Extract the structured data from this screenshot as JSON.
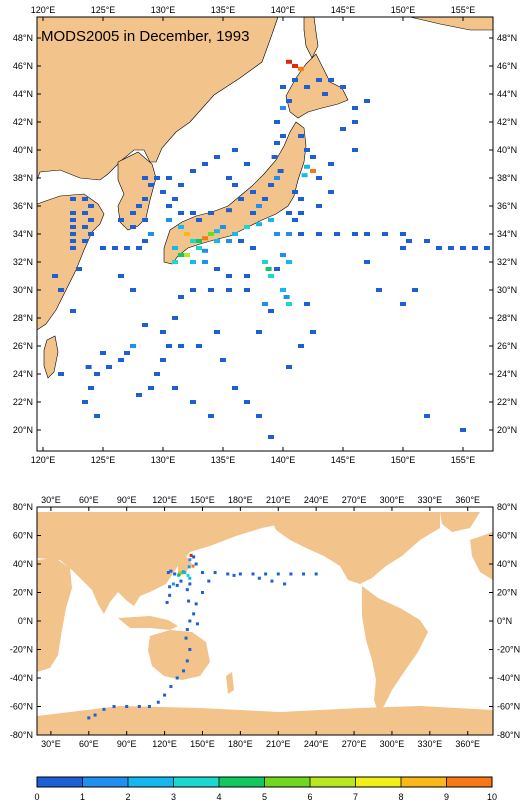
{
  "title": "MODS2005 in December, 1993",
  "colors": {
    "land": "#f2c38a",
    "ocean": "#ffffff",
    "frame": "#000000"
  },
  "regional_map": {
    "lon_range": [
      119.5,
      157.5
    ],
    "lat_range": [
      18.5,
      49.5
    ],
    "lon_ticks": [
      "120°E",
      "125°E",
      "130°E",
      "135°E",
      "140°E",
      "145°E",
      "150°E",
      "155°E"
    ],
    "lat_ticks": [
      "20°N",
      "22°N",
      "24°N",
      "26°N",
      "28°N",
      "30°N",
      "32°N",
      "34°N",
      "36°N",
      "38°N",
      "40°N",
      "42°N",
      "44°N",
      "46°N",
      "48°N"
    ]
  },
  "global_map": {
    "lon_range": [
      19,
      380
    ],
    "lat_range": [
      -80,
      80
    ],
    "lon_ticks": [
      "30°E",
      "60°E",
      "90°E",
      "120°E",
      "150°E",
      "180°E",
      "210°E",
      "240°E",
      "270°E",
      "300°E",
      "330°E",
      "360°E"
    ],
    "lat_ticks": [
      "80°N",
      "60°N",
      "40°N",
      "20°N",
      "0°N",
      "-20°N",
      "-40°N",
      "-60°N",
      "-80°N"
    ]
  },
  "colorbar": {
    "labels": [
      "0",
      "1",
      "2",
      "3",
      "4",
      "5",
      "6",
      "7",
      "8",
      "9",
      "10"
    ],
    "colors": [
      "#1f5fd6",
      "#1f8ff0",
      "#14b8f0",
      "#18d8d0",
      "#10c860",
      "#70d820",
      "#b8e820",
      "#f0f018",
      "#f8b818",
      "#f87818",
      "#e02810"
    ]
  },
  "observations_regional": [
    [
      122.5,
      36.5,
      0
    ],
    [
      123.5,
      36.5,
      0
    ],
    [
      124,
      36,
      0
    ],
    [
      122.5,
      35.5,
      0
    ],
    [
      123.5,
      35.5,
      0
    ],
    [
      122.5,
      35,
      0
    ],
    [
      124,
      35,
      0
    ],
    [
      122.5,
      34.5,
      0
    ],
    [
      123.5,
      34.5,
      0
    ],
    [
      122.5,
      34,
      0
    ],
    [
      124,
      34,
      0
    ],
    [
      122.5,
      33.5,
      0
    ],
    [
      123.5,
      33.5,
      0
    ],
    [
      122.5,
      33,
      0
    ],
    [
      125,
      33,
      0
    ],
    [
      126,
      33,
      0
    ],
    [
      127,
      33,
      0
    ],
    [
      128,
      33,
      0
    ],
    [
      128.5,
      33.5,
      0
    ],
    [
      129,
      34,
      1
    ],
    [
      127.5,
      34.5,
      0
    ],
    [
      126.5,
      35,
      0
    ],
    [
      128,
      36,
      0
    ],
    [
      128.5,
      36.5,
      0
    ],
    [
      129,
      37.5,
      0
    ],
    [
      128.5,
      38,
      0
    ],
    [
      129.5,
      38,
      0
    ],
    [
      130,
      37,
      0
    ],
    [
      131,
      36.5,
      0
    ],
    [
      130.5,
      38,
      0
    ],
    [
      131.5,
      37.5,
      0
    ],
    [
      132.5,
      38.5,
      0
    ],
    [
      133.5,
      39,
      0
    ],
    [
      134.5,
      39.5,
      0
    ],
    [
      136,
      40,
      0
    ],
    [
      137,
      39,
      0
    ],
    [
      130.5,
      35,
      1
    ],
    [
      131.5,
      34.5,
      2
    ],
    [
      132,
      34,
      8
    ],
    [
      132.5,
      33.5,
      3
    ],
    [
      133,
      33.5,
      4
    ],
    [
      133.5,
      33.7,
      9
    ],
    [
      134,
      34,
      5
    ],
    [
      134.5,
      34.2,
      2
    ],
    [
      135,
      34.5,
      1
    ],
    [
      131,
      33,
      2
    ],
    [
      131.5,
      32.5,
      4
    ],
    [
      131,
      32,
      3
    ],
    [
      132,
      32.5,
      6
    ],
    [
      132.5,
      32,
      2
    ],
    [
      133,
      33,
      3
    ],
    [
      133.5,
      32.8,
      1
    ],
    [
      134.5,
      33.5,
      2
    ],
    [
      135.5,
      33.5,
      1
    ],
    [
      136,
      34,
      2
    ],
    [
      137,
      34.5,
      3
    ],
    [
      138,
      34.7,
      2
    ],
    [
      139,
      35,
      2
    ],
    [
      136.5,
      33.5,
      0
    ],
    [
      137.5,
      33,
      0
    ],
    [
      139.5,
      34,
      1
    ],
    [
      140.5,
      34,
      1
    ],
    [
      141,
      35,
      0
    ],
    [
      137.5,
      35.5,
      0
    ],
    [
      138,
      36,
      1
    ],
    [
      138.5,
      36.5,
      0
    ],
    [
      139,
      37.5,
      0
    ],
    [
      139.5,
      38,
      1
    ],
    [
      139.8,
      38.5,
      0
    ],
    [
      139.3,
      39.5,
      0
    ],
    [
      139.5,
      40.5,
      0
    ],
    [
      140,
      41,
      0
    ],
    [
      139.5,
      42,
      0
    ],
    [
      140,
      43,
      1
    ],
    [
      140.5,
      43.5,
      0
    ],
    [
      140,
      44.5,
      0
    ],
    [
      141,
      45,
      0
    ],
    [
      141,
      46,
      10
    ],
    [
      141.5,
      45.8,
      9
    ],
    [
      140.5,
      46.3,
      10
    ],
    [
      142,
      44.5,
      0
    ],
    [
      143,
      45,
      0
    ],
    [
      144,
      45,
      0
    ],
    [
      145,
      44.5,
      0
    ],
    [
      143.5,
      44,
      0
    ],
    [
      141.5,
      41,
      0
    ],
    [
      142,
      40,
      0
    ],
    [
      142.5,
      39.5,
      0
    ],
    [
      142,
      38.8,
      2
    ],
    [
      142.5,
      38.5,
      9
    ],
    [
      141.8,
      38.2,
      2
    ],
    [
      141,
      37,
      0
    ],
    [
      141.5,
      36.5,
      0
    ],
    [
      141.5,
      35.5,
      0
    ],
    [
      140.5,
      35.5,
      0
    ],
    [
      141.5,
      34,
      0
    ],
    [
      143,
      34,
      0
    ],
    [
      144.5,
      34,
      0
    ],
    [
      146,
      34,
      0
    ],
    [
      147,
      34,
      0
    ],
    [
      148.5,
      34,
      0
    ],
    [
      150,
      34,
      0
    ],
    [
      150.5,
      33.5,
      0
    ],
    [
      152,
      33.5,
      0
    ],
    [
      153,
      33,
      0
    ],
    [
      154,
      33,
      0
    ],
    [
      155,
      33,
      0
    ],
    [
      156,
      33,
      0
    ],
    [
      157,
      33,
      0
    ],
    [
      150,
      33,
      0
    ],
    [
      143,
      36,
      0
    ],
    [
      144,
      37,
      0
    ],
    [
      143,
      38,
      0
    ],
    [
      144,
      39,
      0
    ],
    [
      146,
      40,
      0
    ],
    [
      146,
      43,
      0
    ],
    [
      145,
      41.5,
      0
    ],
    [
      133.5,
      32,
      1
    ],
    [
      134.5,
      31.5,
      0
    ],
    [
      135.5,
      31,
      0
    ],
    [
      137,
      31,
      0
    ],
    [
      138.5,
      32,
      3
    ],
    [
      138.8,
      31.5,
      4
    ],
    [
      139,
      31,
      3
    ],
    [
      139.5,
      31.5,
      0
    ],
    [
      140,
      32.5,
      1
    ],
    [
      140.5,
      32,
      2
    ],
    [
      140,
      30,
      2
    ],
    [
      140.3,
      29.5,
      1
    ],
    [
      140.5,
      29,
      3
    ],
    [
      138.5,
      29,
      1
    ],
    [
      139,
      28.5,
      0
    ],
    [
      137,
      30,
      0
    ],
    [
      135.5,
      30,
      0
    ],
    [
      134,
      30,
      0
    ],
    [
      132.5,
      30,
      0
    ],
    [
      131.5,
      29.5,
      0
    ],
    [
      131,
      28,
      0
    ],
    [
      130,
      27,
      0
    ],
    [
      130.5,
      26,
      0
    ],
    [
      130,
      25,
      0
    ],
    [
      129.5,
      24,
      0
    ],
    [
      131,
      23,
      0
    ],
    [
      129,
      23,
      0
    ],
    [
      128,
      22.5,
      0
    ],
    [
      127.5,
      26,
      1
    ],
    [
      127,
      25.5,
      0
    ],
    [
      126.5,
      25,
      0
    ],
    [
      125.5,
      24.5,
      0
    ],
    [
      124.5,
      24,
      0
    ],
    [
      125,
      25.5,
      0
    ],
    [
      123.8,
      24.5,
      0
    ],
    [
      124,
      23,
      0
    ],
    [
      123.5,
      22,
      0
    ],
    [
      124.5,
      21,
      0
    ],
    [
      133,
      26,
      0
    ],
    [
      134.5,
      27,
      0
    ],
    [
      135,
      25,
      0
    ],
    [
      136,
      23,
      0
    ],
    [
      137,
      22,
      0
    ],
    [
      138,
      21,
      0
    ],
    [
      139,
      19.5,
      0
    ],
    [
      142,
      29,
      0
    ],
    [
      142.5,
      27,
      0
    ],
    [
      141.5,
      26,
      0
    ],
    [
      140.5,
      24.5,
      0
    ],
    [
      147,
      32,
      0
    ],
    [
      148,
      30,
      0
    ],
    [
      150,
      29,
      0
    ],
    [
      151,
      30,
      0
    ],
    [
      155,
      20,
      0
    ],
    [
      152,
      21,
      0
    ],
    [
      138,
      27,
      0
    ],
    [
      134,
      35.5,
      0
    ],
    [
      135.5,
      35.7,
      0
    ],
    [
      136.5,
      36.5,
      0
    ],
    [
      137.5,
      37,
      0
    ],
    [
      136,
      37.5,
      0
    ],
    [
      135.5,
      38,
      0
    ],
    [
      133,
      35,
      0
    ],
    [
      132.5,
      35.5,
      0
    ],
    [
      131.5,
      35.5,
      0
    ],
    [
      130.5,
      36,
      0
    ],
    [
      128.5,
      35,
      0
    ],
    [
      127.5,
      35.5,
      0
    ],
    [
      121.5,
      24,
      0
    ],
    [
      121,
      31,
      0
    ],
    [
      123,
      31.5,
      0
    ],
    [
      121.5,
      30,
      0
    ],
    [
      122.5,
      28.5,
      0
    ],
    [
      126.5,
      31,
      0
    ],
    [
      127.5,
      30,
      0
    ],
    [
      128.5,
      27.5,
      0
    ],
    [
      131.5,
      26,
      0
    ],
    [
      132.5,
      22,
      0
    ],
    [
      134,
      21,
      0
    ],
    [
      146,
      42,
      0
    ],
    [
      147,
      43.5,
      0
    ]
  ],
  "observations_global": [
    [
      141,
      46,
      10
    ],
    [
      142.5,
      38.5,
      9
    ],
    [
      133.5,
      33.7,
      9
    ],
    [
      132,
      34,
      8
    ],
    [
      131,
      32,
      3
    ],
    [
      134,
      34,
      5
    ],
    [
      138.5,
      32,
      3
    ],
    [
      140,
      30,
      2
    ],
    [
      131.5,
      32.5,
      4
    ],
    [
      135,
      34.5,
      1
    ],
    [
      139.5,
      38,
      1
    ],
    [
      136,
      34,
      2
    ],
    [
      128,
      33,
      0
    ],
    [
      125,
      35,
      0
    ],
    [
      123,
      34,
      0
    ],
    [
      140,
      43,
      1
    ],
    [
      143,
      45,
      0
    ],
    [
      145,
      40,
      0
    ],
    [
      130,
      25,
      0
    ],
    [
      127,
      26,
      1
    ],
    [
      124,
      24,
      0
    ],
    [
      133,
      28,
      0
    ],
    [
      150,
      34,
      0
    ],
    [
      160,
      34,
      0
    ],
    [
      170,
      33,
      0
    ],
    [
      180,
      33,
      0
    ],
    [
      190,
      33,
      0
    ],
    [
      200,
      33,
      0
    ],
    [
      210,
      33,
      0
    ],
    [
      220,
      33,
      0
    ],
    [
      230,
      33,
      0
    ],
    [
      240,
      33,
      0
    ],
    [
      155,
      28,
      0
    ],
    [
      175,
      32,
      0
    ],
    [
      195,
      30,
      0
    ],
    [
      205,
      28,
      0
    ],
    [
      215,
      26,
      0
    ],
    [
      140,
      26,
      0
    ],
    [
      138,
      22,
      0
    ],
    [
      150,
      20,
      0
    ],
    [
      145,
      12,
      0
    ],
    [
      143,
      5,
      0
    ],
    [
      140,
      0,
      0
    ],
    [
      138,
      -6,
      0
    ],
    [
      137,
      -12,
      0
    ],
    [
      140,
      -20,
      0
    ],
    [
      138,
      -28,
      0
    ],
    [
      135,
      -35,
      0
    ],
    [
      130,
      -40,
      0
    ],
    [
      125,
      -46,
      0
    ],
    [
      120,
      -52,
      0
    ],
    [
      115,
      -57,
      0
    ],
    [
      108,
      -60,
      0
    ],
    [
      100,
      -60,
      0
    ],
    [
      90,
      -60,
      0
    ],
    [
      80,
      -60,
      0
    ],
    [
      72,
      -62,
      0
    ],
    [
      65,
      -66,
      0
    ],
    [
      60,
      -68,
      0
    ],
    [
      122,
      13,
      0
    ],
    [
      124,
      18,
      0
    ],
    [
      146,
      -2,
      0
    ],
    [
      139,
      14,
      0
    ]
  ]
}
